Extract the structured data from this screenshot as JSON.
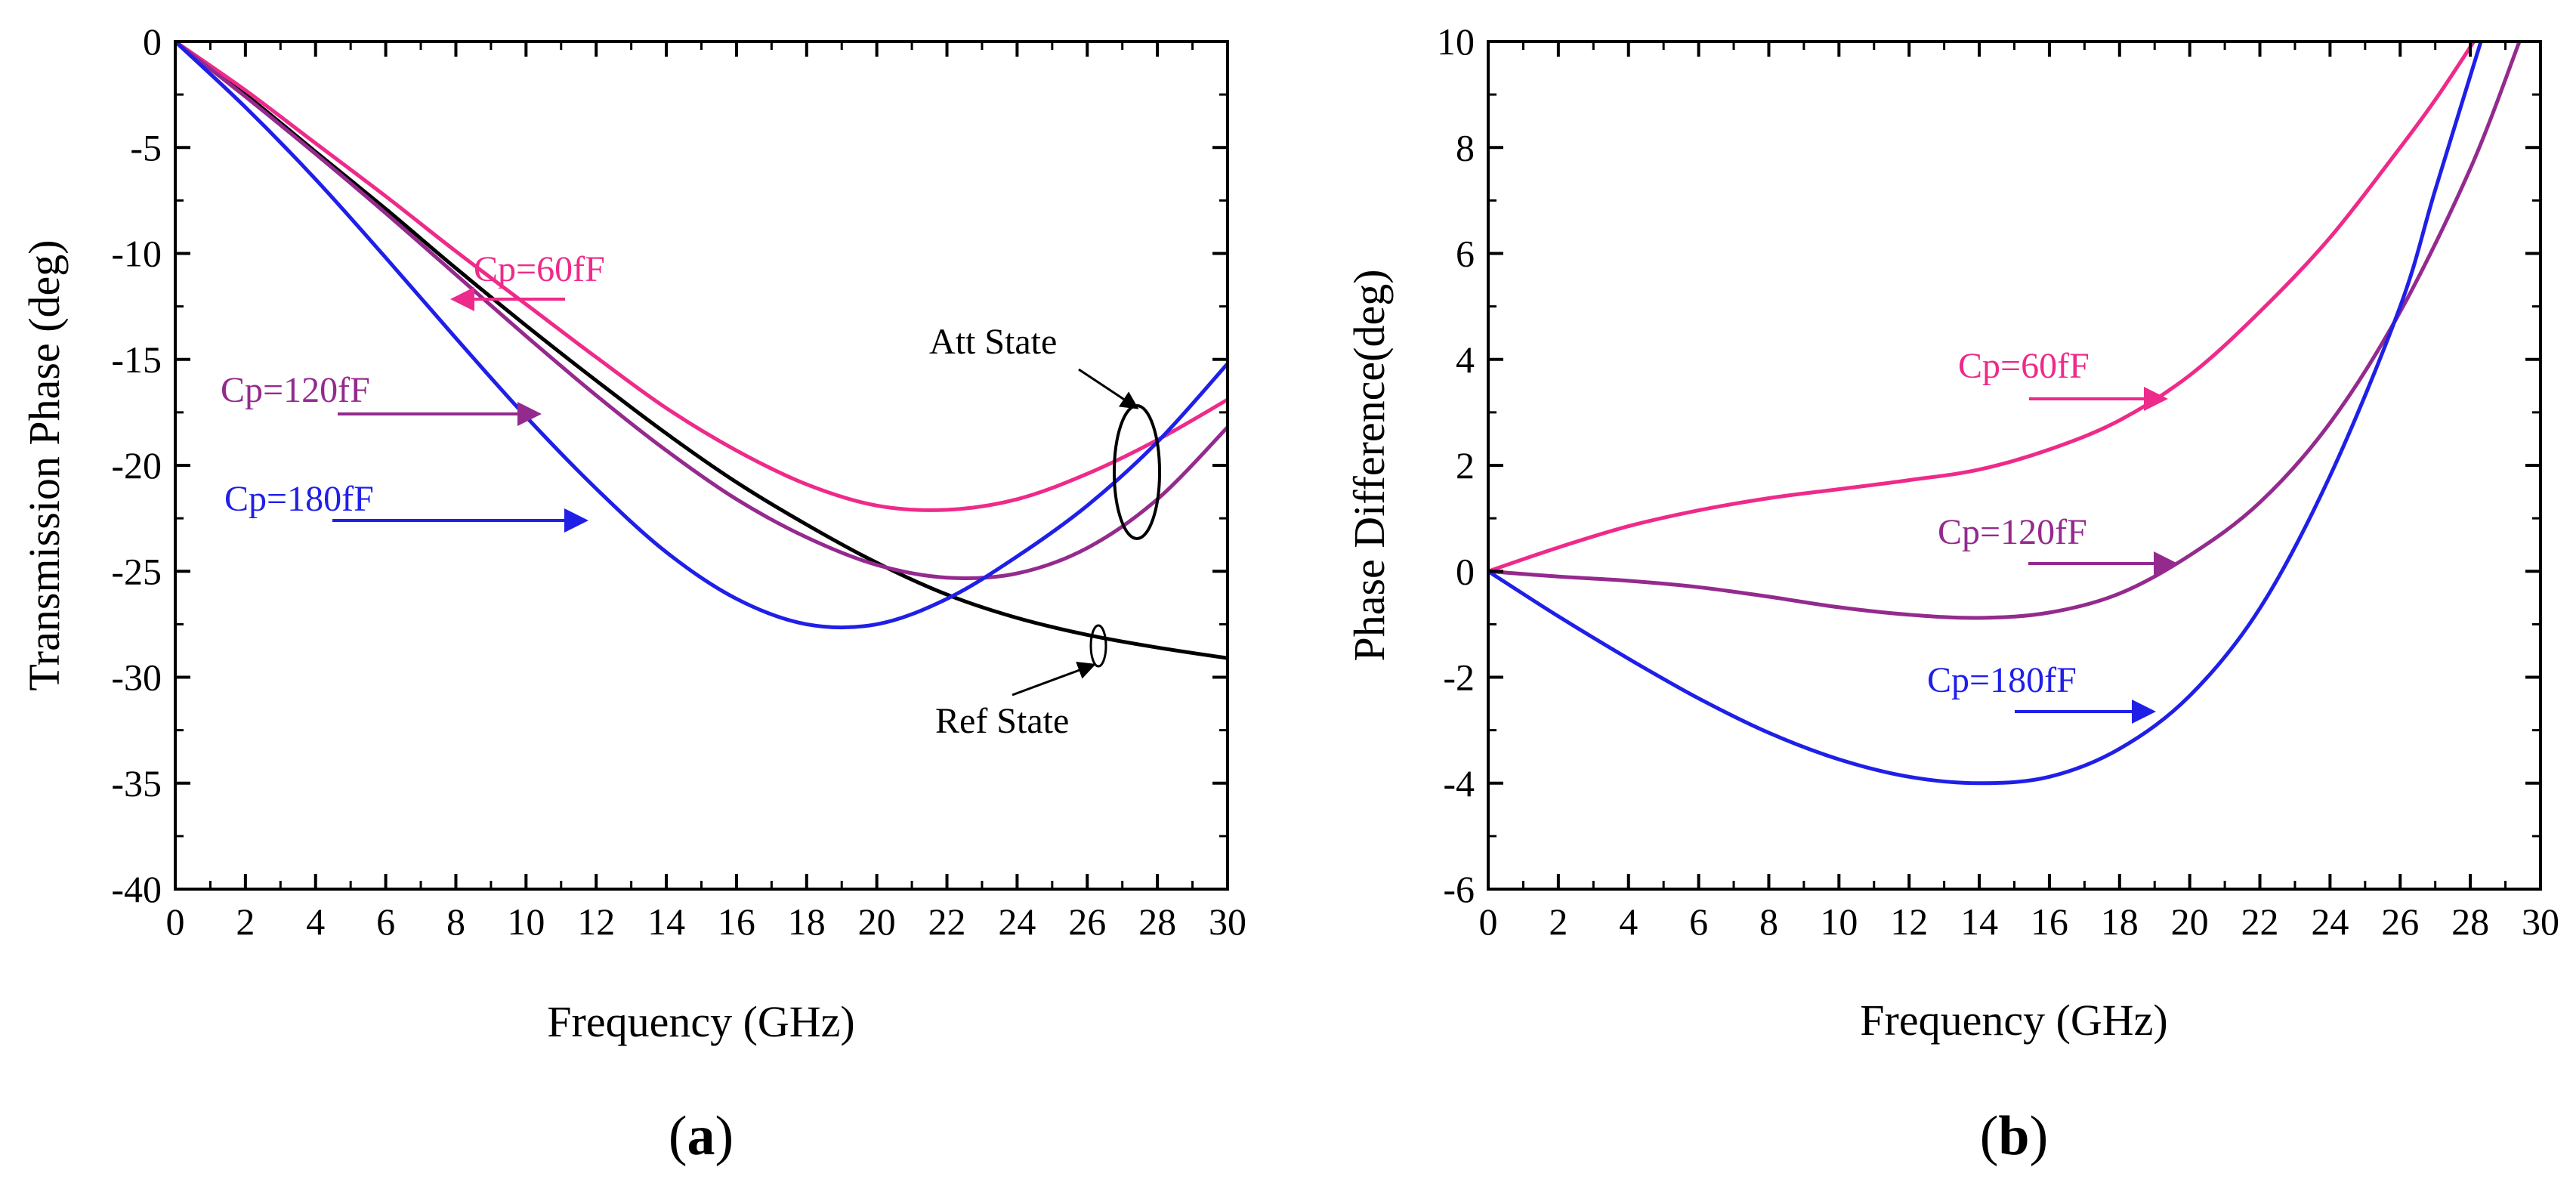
{
  "panels": {
    "a": {
      "label_open": "(",
      "label_letter": "a",
      "label_close": ")"
    },
    "b": {
      "label_open": "(",
      "label_letter": "b",
      "label_close": ")"
    }
  },
  "chart_data": [
    {
      "id": "a",
      "type": "line",
      "xlabel": "Frequency (GHz)",
      "ylabel": "Transmission Phase (deg)",
      "xlim": [
        0,
        30
      ],
      "ylim": [
        -40,
        0
      ],
      "xticks": [
        0,
        2,
        4,
        6,
        8,
        10,
        12,
        14,
        16,
        18,
        20,
        22,
        24,
        26,
        28,
        30
      ],
      "yticks": [
        0,
        -5,
        -10,
        -15,
        -20,
        -25,
        -30,
        -35,
        -40
      ],
      "grid": false,
      "series": [
        {
          "key": "ref",
          "color": "#000000",
          "x": [
            0,
            2,
            4,
            6,
            8,
            10,
            12,
            14,
            16,
            18,
            20,
            22,
            24,
            26,
            28,
            30
          ],
          "y": [
            0,
            -2.5,
            -5.2,
            -7.9,
            -10.7,
            -13.4,
            -16.0,
            -18.5,
            -20.8,
            -22.8,
            -24.6,
            -26.1,
            -27.2,
            -28.0,
            -28.6,
            -29.1
          ]
        },
        {
          "key": "cp60",
          "name": "Cp=60fF",
          "color": "#ee2a8a",
          "x": [
            0,
            2,
            4,
            6,
            8,
            10,
            12,
            14,
            16,
            18,
            20,
            22,
            24,
            26,
            28,
            30
          ],
          "y": [
            0,
            -2.3,
            -4.8,
            -7.3,
            -9.9,
            -12.4,
            -14.9,
            -17.3,
            -19.3,
            -20.9,
            -21.9,
            -22.1,
            -21.6,
            -20.4,
            -18.8,
            -16.9
          ]
        },
        {
          "key": "cp120",
          "name": "Cp=120fF",
          "color": "#942a8e",
          "x": [
            0,
            2,
            4,
            6,
            8,
            10,
            12,
            14,
            16,
            18,
            20,
            22,
            24,
            26,
            28,
            30
          ],
          "y": [
            0,
            -2.6,
            -5.3,
            -8.1,
            -11.0,
            -13.9,
            -16.7,
            -19.3,
            -21.6,
            -23.4,
            -24.7,
            -25.3,
            -25.1,
            -23.9,
            -21.6,
            -18.2
          ]
        },
        {
          "key": "cp180",
          "name": "Cp=180fF",
          "color": "#1f1fe8",
          "x": [
            0,
            2,
            4,
            6,
            8,
            10,
            12,
            14,
            16,
            18,
            20,
            22,
            24,
            26,
            28,
            30
          ],
          "y": [
            0,
            -3.1,
            -6.5,
            -10.2,
            -14.0,
            -17.7,
            -21.1,
            -24.1,
            -26.3,
            -27.5,
            -27.5,
            -26.3,
            -24.3,
            -21.9,
            -18.9,
            -15.2
          ]
        }
      ],
      "annotations": {
        "cp60": "Cp=60fF",
        "cp120": "Cp=120fF",
        "cp180": "Cp=180fF",
        "att_state": "Att State",
        "ref_state": "Ref State"
      }
    },
    {
      "id": "b",
      "type": "line",
      "xlabel": "Frequency (GHz)",
      "ylabel": "Phase Difference(deg)",
      "xlim": [
        0,
        30
      ],
      "ylim": [
        -6,
        10
      ],
      "xticks": [
        0,
        2,
        4,
        6,
        8,
        10,
        12,
        14,
        16,
        18,
        20,
        22,
        24,
        26,
        28,
        30
      ],
      "yticks": [
        10,
        8,
        6,
        4,
        2,
        0,
        -2,
        -4,
        -6
      ],
      "grid": false,
      "series": [
        {
          "key": "cp60",
          "name": "Cp=60fF",
          "color": "#ee2a8a",
          "x": [
            0,
            2,
            4,
            6,
            8,
            10,
            12,
            14,
            16,
            18,
            20,
            22,
            24,
            26,
            27,
            28.1
          ],
          "y": [
            0,
            0.45,
            0.85,
            1.15,
            1.38,
            1.55,
            1.72,
            1.92,
            2.3,
            2.85,
            3.7,
            4.9,
            6.3,
            8.0,
            8.9,
            10.0
          ]
        },
        {
          "key": "cp120",
          "name": "Cp=120fF",
          "color": "#942a8e",
          "x": [
            0,
            2,
            4,
            6,
            8,
            10,
            12,
            14,
            16,
            18,
            20,
            22,
            24,
            26,
            28,
            29.4
          ],
          "y": [
            0,
            -0.1,
            -0.18,
            -0.3,
            -0.48,
            -0.68,
            -0.82,
            -0.88,
            -0.78,
            -0.42,
            0.3,
            1.3,
            2.8,
            4.9,
            7.6,
            10.0
          ]
        },
        {
          "key": "cp180",
          "name": "Cp=180fF",
          "color": "#1f1fe8",
          "x": [
            0,
            2,
            4,
            6,
            8,
            10,
            12,
            14,
            16,
            18,
            20,
            22,
            24,
            26,
            27,
            28.3
          ],
          "y": [
            0,
            -0.85,
            -1.65,
            -2.4,
            -3.05,
            -3.55,
            -3.88,
            -4.0,
            -3.88,
            -3.35,
            -2.35,
            -0.7,
            1.8,
            5.0,
            7.2,
            10.0
          ]
        }
      ],
      "annotations": {
        "cp60": "Cp=60fF",
        "cp120": "Cp=120fF",
        "cp180": "Cp=180fF"
      }
    }
  ]
}
